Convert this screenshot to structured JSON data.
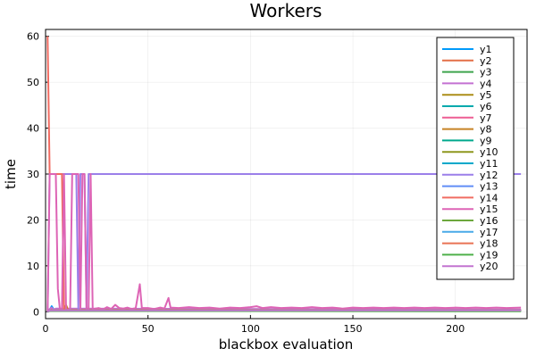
{
  "chart_data": {
    "type": "line",
    "title": "Workers",
    "xlabel": "blackbox evaluation",
    "ylabel": "time",
    "xlim": [
      0,
      235
    ],
    "ylim": [
      -1.5,
      61.5
    ],
    "xticks": [
      0,
      50,
      100,
      150,
      200
    ],
    "yticks": [
      0,
      10,
      20,
      30,
      40,
      50,
      60
    ],
    "grid": true,
    "legend_position": "top-right",
    "x_end": 232,
    "series": [
      {
        "name": "y1",
        "color": "#009AFA",
        "points": [
          [
            1,
            0
          ],
          [
            2,
            0.4
          ],
          [
            3,
            1.2
          ],
          [
            4,
            0.5
          ],
          [
            5,
            0.6
          ],
          [
            6,
            0.3
          ],
          [
            232,
            0.3
          ]
        ]
      },
      {
        "name": "y2",
        "color": "#E36F47",
        "points": [
          [
            1,
            0.1
          ],
          [
            2,
            0.5
          ],
          [
            232,
            0.4
          ]
        ]
      },
      {
        "name": "y3",
        "color": "#3EA44E",
        "points": [
          [
            1,
            0
          ],
          [
            2,
            0.2
          ],
          [
            232,
            0.2
          ]
        ]
      },
      {
        "name": "y4",
        "color": "#C371D2",
        "points": [
          [
            1,
            0
          ],
          [
            2,
            0.6
          ],
          [
            3,
            0.9
          ],
          [
            4,
            0.4
          ],
          [
            5,
            0.7
          ],
          [
            232,
            0.5
          ]
        ]
      },
      {
        "name": "y5",
        "color": "#AC8E18",
        "points": [
          [
            1,
            0
          ],
          [
            2,
            0.3
          ],
          [
            232,
            0.3
          ]
        ]
      },
      {
        "name": "y6",
        "color": "#00A9AD",
        "points": [
          [
            1,
            0
          ],
          [
            2,
            0.2
          ],
          [
            232,
            0.2
          ]
        ]
      },
      {
        "name": "y7",
        "color": "#ED5E93",
        "points": [
          [
            1,
            0
          ],
          [
            2,
            0.3
          ],
          [
            232,
            0.3
          ]
        ]
      },
      {
        "name": "y8",
        "color": "#C68225",
        "points": [
          [
            1,
            0
          ],
          [
            2,
            0.3
          ],
          [
            9,
            0.4
          ],
          [
            10,
            1.5
          ],
          [
            11,
            0.4
          ],
          [
            232,
            0.3
          ]
        ]
      },
      {
        "name": "y9",
        "color": "#00A98D",
        "points": [
          [
            1,
            0
          ],
          [
            2,
            0.2
          ],
          [
            232,
            0.2
          ]
        ]
      },
      {
        "name": "y10",
        "color": "#8E971E",
        "points": [
          [
            1,
            0
          ],
          [
            2,
            0.2
          ],
          [
            232,
            0.2
          ]
        ]
      },
      {
        "name": "y11",
        "color": "#00A8CB",
        "points": [
          [
            1,
            0
          ],
          [
            2,
            0.2
          ],
          [
            232,
            0.2
          ]
        ]
      },
      {
        "name": "y12",
        "color": "#9B7FE9",
        "points": [
          [
            1,
            0
          ],
          [
            2,
            30
          ],
          [
            15,
            30
          ],
          [
            16,
            0.5
          ],
          [
            17,
            30
          ],
          [
            19,
            30
          ],
          [
            20,
            0.5
          ],
          [
            21,
            30
          ],
          [
            232,
            30
          ]
        ]
      },
      {
        "name": "y13",
        "color": "#618DF6",
        "points": [
          [
            1,
            0
          ],
          [
            2,
            0.2
          ],
          [
            232,
            0.2
          ]
        ]
      },
      {
        "name": "y14",
        "color": "#F16C62",
        "points": [
          [
            1,
            60
          ],
          [
            2,
            30
          ],
          [
            8,
            30
          ],
          [
            9,
            0.5
          ],
          [
            10,
            0.3
          ],
          [
            232,
            0.3
          ]
        ]
      },
      {
        "name": "y15",
        "color": "#DD64B5",
        "points": [
          [
            1,
            0
          ],
          [
            2,
            30
          ],
          [
            3,
            30
          ],
          [
            4,
            30
          ],
          [
            5,
            30
          ],
          [
            6,
            5
          ],
          [
            7,
            0.5
          ],
          [
            8,
            0.5
          ],
          [
            9,
            30
          ],
          [
            10,
            0.5
          ],
          [
            11,
            0.5
          ],
          [
            12,
            0.5
          ],
          [
            13,
            30
          ],
          [
            14,
            30
          ],
          [
            15,
            30
          ],
          [
            16,
            30
          ],
          [
            17,
            0.5
          ],
          [
            18,
            30
          ],
          [
            19,
            30
          ],
          [
            20,
            0.5
          ],
          [
            21,
            0.5
          ],
          [
            22,
            30
          ],
          [
            23,
            0.6
          ],
          [
            26,
            0.8
          ],
          [
            28,
            0.5
          ],
          [
            30,
            1.0
          ],
          [
            32,
            0.6
          ],
          [
            34,
            1.5
          ],
          [
            36,
            0.8
          ],
          [
            38,
            0.7
          ],
          [
            40,
            0.9
          ],
          [
            42,
            0.6
          ],
          [
            44,
            0.8
          ],
          [
            46,
            6
          ],
          [
            47,
            0.8
          ],
          [
            50,
            0.8
          ],
          [
            53,
            0.6
          ],
          [
            56,
            0.9
          ],
          [
            58,
            0.7
          ],
          [
            60,
            3
          ],
          [
            61,
            0.9
          ],
          [
            65,
            0.8
          ],
          [
            70,
            1.0
          ],
          [
            75,
            0.8
          ],
          [
            80,
            0.9
          ],
          [
            85,
            0.7
          ],
          [
            90,
            0.9
          ],
          [
            95,
            0.8
          ],
          [
            100,
            1.0
          ],
          [
            103,
            1.2
          ],
          [
            106,
            0.8
          ],
          [
            110,
            1.0
          ],
          [
            115,
            0.8
          ],
          [
            120,
            0.9
          ],
          [
            125,
            0.8
          ],
          [
            130,
            1.0
          ],
          [
            135,
            0.8
          ],
          [
            140,
            0.9
          ],
          [
            145,
            0.7
          ],
          [
            150,
            0.9
          ],
          [
            155,
            0.8
          ],
          [
            160,
            0.9
          ],
          [
            165,
            0.8
          ],
          [
            170,
            0.9
          ],
          [
            175,
            0.8
          ],
          [
            180,
            0.9
          ],
          [
            185,
            0.8
          ],
          [
            190,
            0.9
          ],
          [
            195,
            0.8
          ],
          [
            200,
            0.9
          ],
          [
            205,
            0.8
          ],
          [
            210,
            0.9
          ],
          [
            215,
            0.8
          ],
          [
            220,
            0.9
          ],
          [
            225,
            0.8
          ],
          [
            232,
            0.9
          ]
        ]
      },
      {
        "name": "y16",
        "color": "#6CA73C",
        "points": [
          [
            1,
            0
          ],
          [
            2,
            0.3
          ],
          [
            232,
            0.3
          ]
        ]
      },
      {
        "name": "y17",
        "color": "#48AAE8",
        "points": [
          [
            1,
            0
          ],
          [
            2,
            0.2
          ],
          [
            232,
            0.2
          ]
        ]
      },
      {
        "name": "y18",
        "color": "#E97355",
        "points": [
          [
            1,
            0
          ],
          [
            2,
            0.2
          ],
          [
            232,
            0.2
          ]
        ]
      },
      {
        "name": "y19",
        "color": "#4EB04A",
        "points": [
          [
            1,
            0
          ],
          [
            2,
            0.2
          ],
          [
            232,
            0.1
          ]
        ]
      },
      {
        "name": "y20",
        "color": "#C274D0",
        "points": [
          [
            1,
            0
          ],
          [
            2,
            0.3
          ],
          [
            232,
            0.3
          ]
        ]
      }
    ]
  }
}
